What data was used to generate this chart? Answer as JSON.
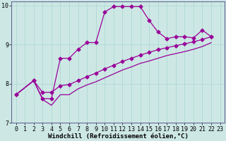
{
  "background_color": "#cde8e4",
  "grid_color": "#b0d8d4",
  "line_color": "#990099",
  "marker": "D",
  "marker_size": 2.5,
  "line_width": 0.9,
  "xlim": [
    -0.5,
    23.5
  ],
  "ylim": [
    7,
    10.1
  ],
  "xlabel": "Windchill (Refroidissement éolien,°C)",
  "xlabel_fontsize": 6.5,
  "yticks": [
    7,
    8,
    9,
    10
  ],
  "xticks": [
    0,
    1,
    2,
    3,
    4,
    5,
    6,
    7,
    8,
    9,
    10,
    11,
    12,
    13,
    14,
    15,
    16,
    17,
    18,
    19,
    20,
    21,
    22,
    23
  ],
  "curve1_x": [
    0,
    2,
    3,
    4,
    5,
    6,
    7,
    8,
    9,
    10,
    11,
    12,
    13,
    14,
    15,
    16,
    17,
    18,
    19,
    20,
    21,
    22
  ],
  "curve1_y": [
    7.72,
    8.08,
    7.62,
    7.62,
    8.65,
    8.65,
    8.88,
    9.05,
    9.05,
    9.83,
    9.97,
    9.97,
    9.97,
    9.97,
    9.62,
    9.32,
    9.15,
    9.2,
    9.2,
    9.17,
    9.37,
    9.2
  ],
  "curve2_x": [
    0,
    2,
    3,
    4,
    5,
    6,
    7,
    8,
    9,
    10,
    11,
    12,
    13,
    14,
    15,
    16,
    17,
    18,
    19,
    20,
    21,
    22
  ],
  "curve2_y": [
    7.72,
    8.08,
    7.78,
    7.78,
    7.95,
    7.98,
    8.08,
    8.18,
    8.27,
    8.38,
    8.47,
    8.57,
    8.65,
    8.73,
    8.8,
    8.87,
    8.92,
    8.97,
    9.02,
    9.07,
    9.13,
    9.2
  ],
  "curve3_x": [
    0,
    2,
    3,
    4,
    5,
    6,
    7,
    8,
    9,
    10,
    11,
    12,
    13,
    14,
    15,
    16,
    17,
    18,
    19,
    20,
    21,
    22
  ],
  "curve3_y": [
    7.72,
    8.08,
    7.6,
    7.45,
    7.72,
    7.72,
    7.87,
    7.97,
    8.05,
    8.15,
    8.25,
    8.35,
    8.43,
    8.52,
    8.58,
    8.65,
    8.72,
    8.77,
    8.82,
    8.88,
    8.95,
    9.05
  ],
  "tick_fontsize": 6.0
}
